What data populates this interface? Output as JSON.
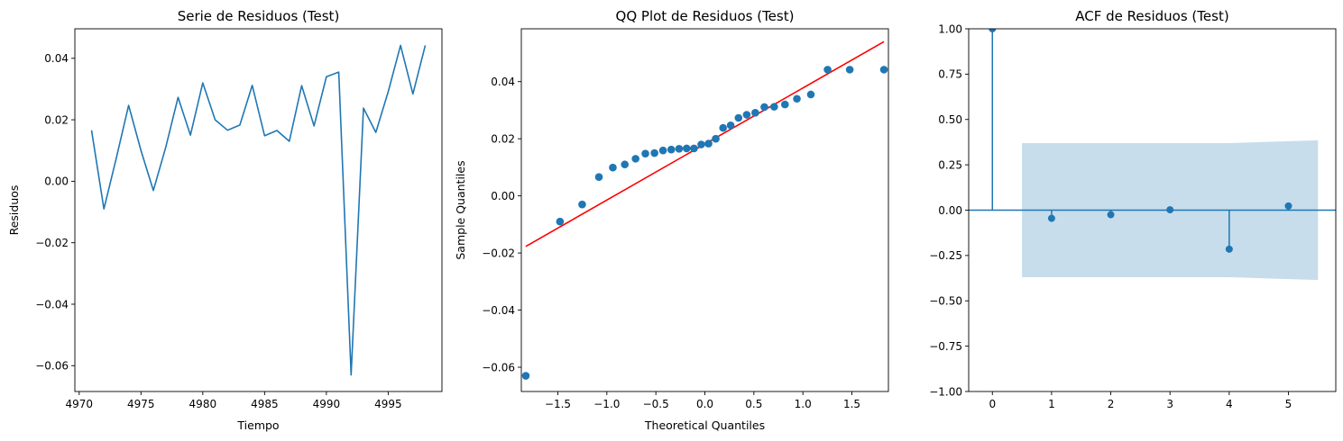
{
  "chart_data": [
    {
      "type": "line",
      "title": "Serie de Residuos (Test)",
      "xlabel": "Tiempo",
      "ylabel": "Residuos",
      "xlim": [
        4969.65,
        4999.35
      ],
      "ylim": [
        -0.0684,
        0.0496
      ],
      "xticks": [
        4970,
        4975,
        4980,
        4985,
        4990,
        4995
      ],
      "yticks": [
        -0.06,
        -0.04,
        -0.02,
        0.0,
        0.02,
        0.04
      ],
      "x": [
        4971,
        4972,
        4973,
        4974,
        4975,
        4976,
        4977,
        4978,
        4979,
        4980,
        4981,
        4982,
        4983,
        4984,
        4985,
        4986,
        4987,
        4988,
        4989,
        4990,
        4991,
        4992,
        4993,
        4994,
        4995,
        4996,
        4997,
        4998
      ],
      "y": [
        0.0166,
        -0.009,
        0.0075,
        0.0247,
        0.01,
        -0.003,
        0.011,
        0.0273,
        0.015,
        0.032,
        0.02,
        0.0166,
        0.0183,
        0.0312,
        0.0148,
        0.0165,
        0.013,
        0.0311,
        0.018,
        0.034,
        0.0355,
        -0.063,
        0.0238,
        0.0159,
        0.0291,
        0.0442,
        0.0284,
        0.0442
      ],
      "color": "#1f77b4",
      "grid": false
    },
    {
      "type": "scatter",
      "title": "QQ Plot de Residuos (Test)",
      "xlabel": "Theoretical Quantiles",
      "ylabel": "Sample Quantiles",
      "xlim": [
        -1.8726,
        1.8726
      ],
      "ylim": [
        -0.0685,
        0.0585
      ],
      "xticks": [
        -1.5,
        -1.0,
        -0.5,
        0.0,
        0.5,
        1.0,
        1.5
      ],
      "yticks": [
        -0.06,
        -0.04,
        -0.02,
        0.0,
        0.02,
        0.04
      ],
      "x": [
        -1.827,
        -1.478,
        -1.252,
        -1.081,
        -0.939,
        -0.817,
        -0.707,
        -0.607,
        -0.514,
        -0.427,
        -0.343,
        -0.263,
        -0.186,
        -0.111,
        -0.037,
        0.037,
        0.111,
        0.186,
        0.263,
        0.343,
        0.427,
        0.514,
        0.607,
        0.707,
        0.817,
        0.939,
        1.081,
        1.252,
        1.478,
        1.827
      ],
      "y": [
        -0.063,
        -0.009,
        -0.003,
        0.0066,
        0.0099,
        0.011,
        0.013,
        0.0148,
        0.015,
        0.0159,
        0.0162,
        0.0165,
        0.0166,
        0.0166,
        0.018,
        0.0183,
        0.02,
        0.0238,
        0.0247,
        0.0273,
        0.0284,
        0.0291,
        0.0311,
        0.0312,
        0.032,
        0.034,
        0.0355,
        0.0442,
        0.0442,
        0.0442
      ],
      "reference_line": {
        "x": [
          -1.827,
          1.827
        ],
        "y": [
          -0.0177,
          0.054
        ],
        "color": "#ff0000"
      },
      "color": "#1f77b4",
      "grid": false
    },
    {
      "type": "bar",
      "title": "ACF de Residuos (Test)",
      "xlabel": "",
      "ylabel": "",
      "xlim": [
        -0.4,
        5.8
      ],
      "ylim": [
        -1.0,
        1.0
      ],
      "xticks": [
        0,
        1,
        2,
        3,
        4,
        5
      ],
      "yticks": [
        -1.0,
        -0.75,
        -0.5,
        -0.25,
        0.0,
        0.25,
        0.5,
        0.75,
        1.0
      ],
      "lags": [
        0,
        1,
        2,
        3,
        4,
        5
      ],
      "values": [
        1.0,
        -0.045,
        -0.025,
        0.002,
        -0.215,
        0.023
      ],
      "confidence_band": {
        "x": [
          0.5,
          4.0,
          5.5
        ],
        "upper": [
          0.37,
          0.37,
          0.385
        ],
        "lower": [
          -0.37,
          -0.37,
          -0.385
        ],
        "color": "#1f77b4"
      },
      "color": "#1f77b4",
      "grid": false
    }
  ]
}
